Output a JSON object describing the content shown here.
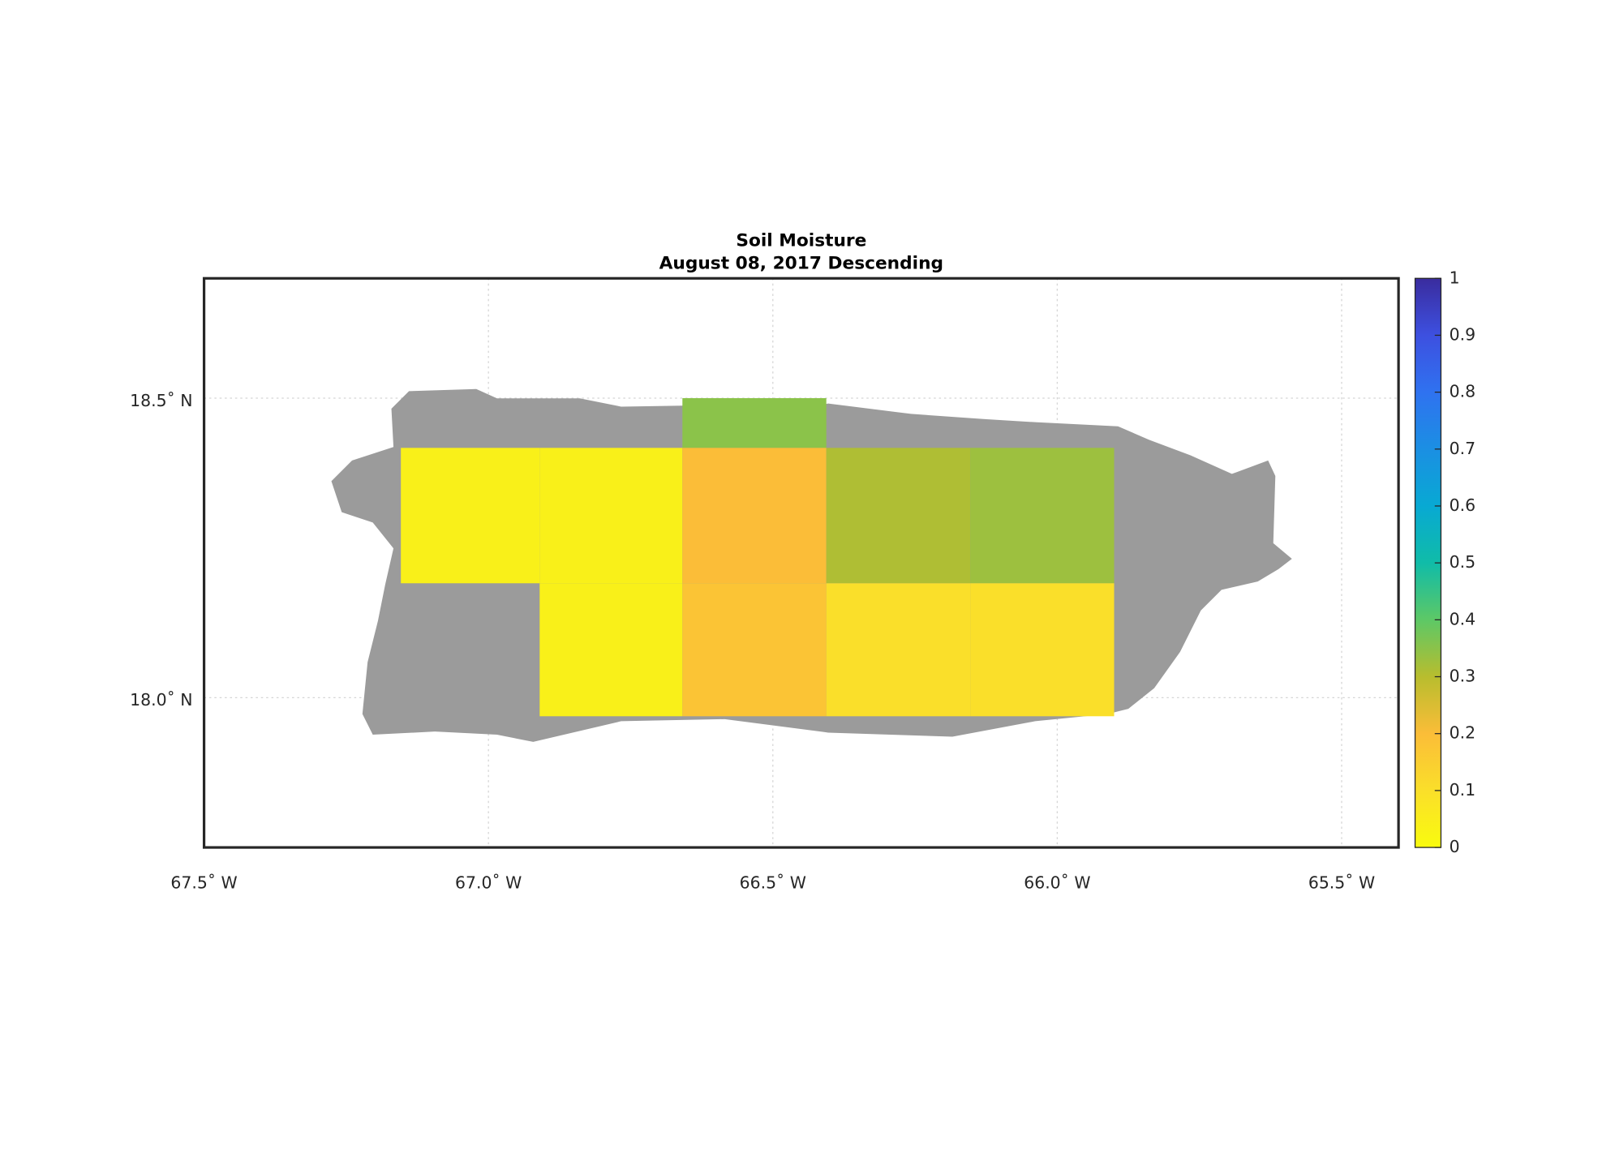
{
  "chart_data": {
    "type": "map",
    "title": "Soil Moisture",
    "subtitle": "August 08, 2017 Descending",
    "xlim": [
      -67.5,
      -65.4
    ],
    "ylim": [
      17.75,
      18.7
    ],
    "xticks": [
      {
        "value": -67.5,
        "label": "67.5˚ W"
      },
      {
        "value": -67.0,
        "label": "67.0˚ W"
      },
      {
        "value": -66.5,
        "label": "66.5˚ W"
      },
      {
        "value": -66.0,
        "label": "66.0˚ W"
      },
      {
        "value": -65.5,
        "label": "65.5˚ W"
      }
    ],
    "yticks": [
      {
        "value": 18.0,
        "label": "18.0˚ N"
      },
      {
        "value": 18.5,
        "label": "18.5˚ N"
      }
    ],
    "grid": true,
    "land_color": "#9b9b9b",
    "colormap": [
      "#f9fb0e",
      "#fadf2a",
      "#fbbd38",
      "#b8bd2e",
      "#5dc866",
      "#10bca8",
      "#08a9d3",
      "#1b8fe3",
      "#2f72f0",
      "#3d50e0",
      "#3a2c9e"
    ],
    "clim": [
      0,
      1
    ],
    "cticks": [
      0,
      0.1,
      0.2,
      0.3,
      0.4,
      0.5,
      0.6,
      0.7,
      0.8,
      0.9,
      1
    ],
    "cells": [
      {
        "lon": [
          -67.154,
          -66.91
        ],
        "lat": [
          18.191,
          18.417
        ],
        "value": 0.04
      },
      {
        "lon": [
          -66.91,
          -66.659
        ],
        "lat": [
          18.191,
          18.417
        ],
        "value": 0.04
      },
      {
        "lon": [
          -66.91,
          -66.659
        ],
        "lat": [
          17.969,
          18.191
        ],
        "value": 0.04
      },
      {
        "lon": [
          -66.659,
          -66.406
        ],
        "lat": [
          18.417,
          18.5
        ],
        "value": 0.35
      },
      {
        "lon": [
          -66.659,
          -66.406
        ],
        "lat": [
          18.191,
          18.417
        ],
        "value": 0.2
      },
      {
        "lon": [
          -66.659,
          -66.406
        ],
        "lat": [
          17.969,
          18.191
        ],
        "value": 0.18
      },
      {
        "lon": [
          -66.406,
          -66.153
        ],
        "lat": [
          18.191,
          18.417
        ],
        "value": 0.31
      },
      {
        "lon": [
          -66.153,
          -65.9
        ],
        "lat": [
          18.191,
          18.417
        ],
        "value": 0.33
      },
      {
        "lon": [
          -66.406,
          -66.153
        ],
        "lat": [
          17.969,
          18.191
        ],
        "value": 0.1
      },
      {
        "lon": [
          -66.153,
          -65.9
        ],
        "lat": [
          17.969,
          18.191
        ],
        "value": 0.1
      }
    ]
  }
}
